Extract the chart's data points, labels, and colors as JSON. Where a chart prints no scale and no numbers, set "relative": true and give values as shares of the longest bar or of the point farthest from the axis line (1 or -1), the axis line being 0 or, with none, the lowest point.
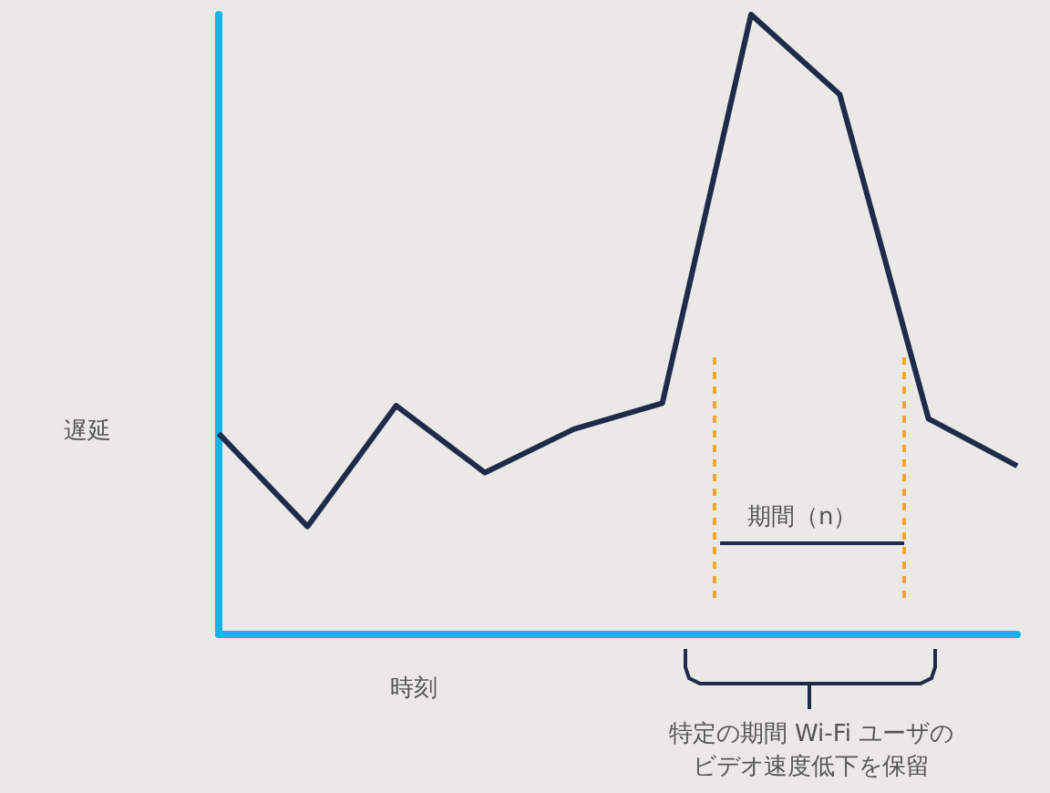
{
  "chart_data": {
    "type": "line",
    "relative": true,
    "xlabel": "時刻",
    "ylabel": "遅延",
    "categories": [
      null,
      null,
      null,
      null,
      null,
      null,
      null,
      null,
      null,
      null
    ],
    "series": [
      {
        "color": "#1f2b48",
        "values": [
          0.324,
          0.174,
          0.369,
          0.261,
          0.331,
          0.373,
          1,
          0.871,
          0.348,
          0.272
        ]
      }
    ],
    "marker": "none",
    "line_style": "solid",
    "annotations": [
      "期間（n）",
      "特定の期間 Wi-Fi ユーザのビデオ速度低下を保留"
    ]
  }
}
